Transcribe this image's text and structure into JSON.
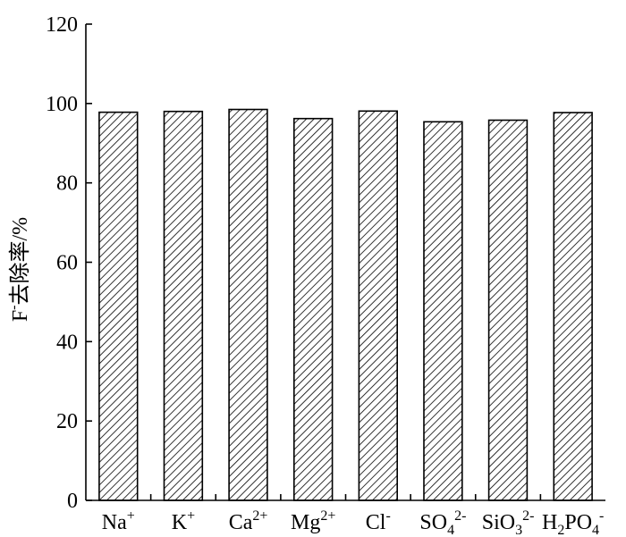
{
  "chart_data": {
    "type": "bar",
    "title": "",
    "xlabel": "",
    "ylabel": "F-去除率/%",
    "ylabel_parts": [
      {
        "text": "F",
        "style": "normal"
      },
      {
        "text": "-",
        "style": "sup"
      },
      {
        "text": "去除率/%",
        "style": "normal"
      }
    ],
    "ylim": [
      0,
      120
    ],
    "yticks": [
      0,
      20,
      40,
      60,
      80,
      100,
      120
    ],
    "grid": false,
    "bar_color": "#ffffff",
    "hatch": "diagonal",
    "categories": [
      "Na+",
      "K+",
      "Ca2+",
      "Mg2+",
      "Cl-",
      "SO42-",
      "SiO32-",
      "H2PO4-"
    ],
    "category_labels": [
      [
        {
          "t": "Na",
          "s": "n"
        },
        {
          "t": "+",
          "s": "sup"
        }
      ],
      [
        {
          "t": "K",
          "s": "n"
        },
        {
          "t": "+",
          "s": "sup"
        }
      ],
      [
        {
          "t": "Ca",
          "s": "n"
        },
        {
          "t": "2+",
          "s": "sup"
        }
      ],
      [
        {
          "t": "Mg",
          "s": "n"
        },
        {
          "t": "2+",
          "s": "sup"
        }
      ],
      [
        {
          "t": "Cl",
          "s": "n"
        },
        {
          "t": "-",
          "s": "sup"
        }
      ],
      [
        {
          "t": "SO",
          "s": "n"
        },
        {
          "t": "4",
          "s": "sub"
        },
        {
          "t": "2-",
          "s": "sup"
        }
      ],
      [
        {
          "t": "SiO",
          "s": "n"
        },
        {
          "t": "3",
          "s": "sub"
        },
        {
          "t": "2-",
          "s": "sup"
        }
      ],
      [
        {
          "t": "H",
          "s": "n"
        },
        {
          "t": "2",
          "s": "sub"
        },
        {
          "t": "PO",
          "s": "n"
        },
        {
          "t": "4",
          "s": "sub"
        },
        {
          "t": "-",
          "s": "sup"
        }
      ]
    ],
    "values": [
      97.8,
      98.0,
      98.5,
      96.2,
      98.1,
      95.4,
      95.8,
      97.7
    ]
  }
}
